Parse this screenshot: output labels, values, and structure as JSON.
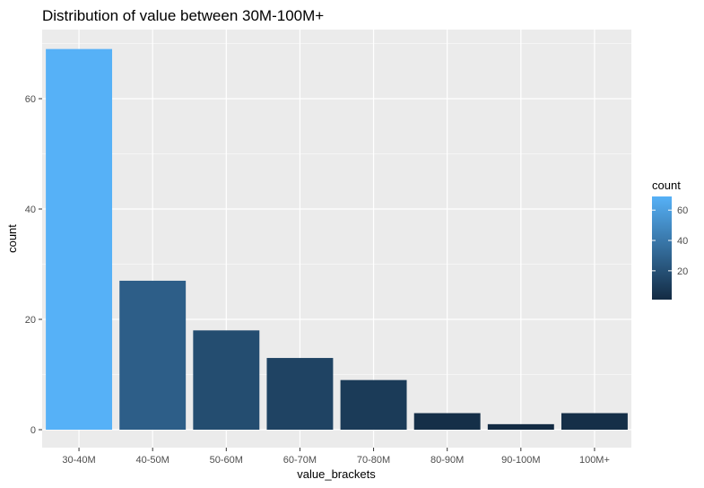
{
  "chart_data": {
    "type": "bar",
    "title": "Distribution of value between 30M-100M+",
    "xlabel": "value_brackets",
    "ylabel": "count",
    "categories": [
      "30-40M",
      "40-50M",
      "50-60M",
      "60-70M",
      "70-80M",
      "80-90M",
      "90-100M",
      "100M+"
    ],
    "values": [
      69,
      27,
      18,
      13,
      9,
      3,
      1,
      3
    ],
    "ylim": [
      0,
      72
    ],
    "yticks": [
      0,
      20,
      40,
      60
    ],
    "grid": true,
    "fill_mapped_to": "count",
    "legend": {
      "title": "count",
      "position": "right",
      "ticks": [
        20,
        40,
        60
      ],
      "range": [
        1,
        69
      ],
      "low_color": "#132B43",
      "high_color": "#56B1F7"
    },
    "panel_background": "#EBEBEB",
    "grid_color": "#FFFFFF"
  }
}
